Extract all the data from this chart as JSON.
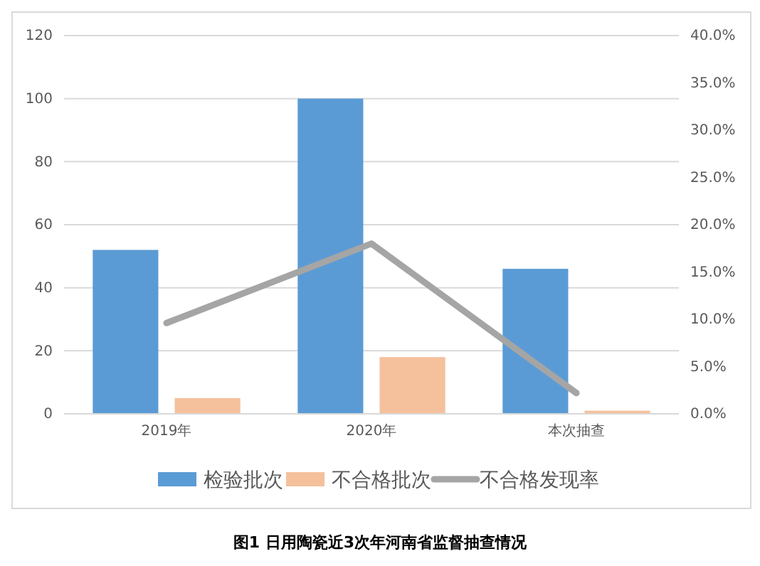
{
  "chart_data": {
    "type": "bar",
    "categories": [
      "2019年",
      "2020年",
      "本次抽查"
    ],
    "series": [
      {
        "name": "检验批次",
        "color": "#5b9bd5",
        "values": [
          52,
          100,
          46
        ]
      },
      {
        "name": "不合格批次",
        "color": "#f4c19c",
        "values": [
          5,
          18,
          1
        ]
      },
      {
        "name": "不合格发现率",
        "type": "line",
        "axis": "y2",
        "color": "#a5a5a5",
        "values": [
          9.6,
          18,
          2.2
        ]
      }
    ],
    "ylim": [
      0,
      120
    ],
    "yticks": [
      0,
      20,
      40,
      60,
      80,
      100,
      120
    ],
    "y2lim": [
      0,
      40
    ],
    "y2ticks": [
      {
        "value": 0,
        "label": "0.0%"
      },
      {
        "value": 5,
        "label": "5.0%"
      },
      {
        "value": 10,
        "label": "10.0%"
      },
      {
        "value": 15,
        "label": "15.0%"
      },
      {
        "value": 20,
        "label": "20.0%"
      },
      {
        "value": 25,
        "label": "25.0%"
      },
      {
        "value": 30,
        "label": "30.0%"
      },
      {
        "value": 35,
        "label": "35.0%"
      },
      {
        "value": 40,
        "label": "40.0%"
      }
    ],
    "grid": "y",
    "legend": "bottom",
    "line_style": "solid",
    "marker": "none",
    "annotations": [
      "图1 日用陶瓷近3次年河南省监督抽查情况"
    ]
  }
}
